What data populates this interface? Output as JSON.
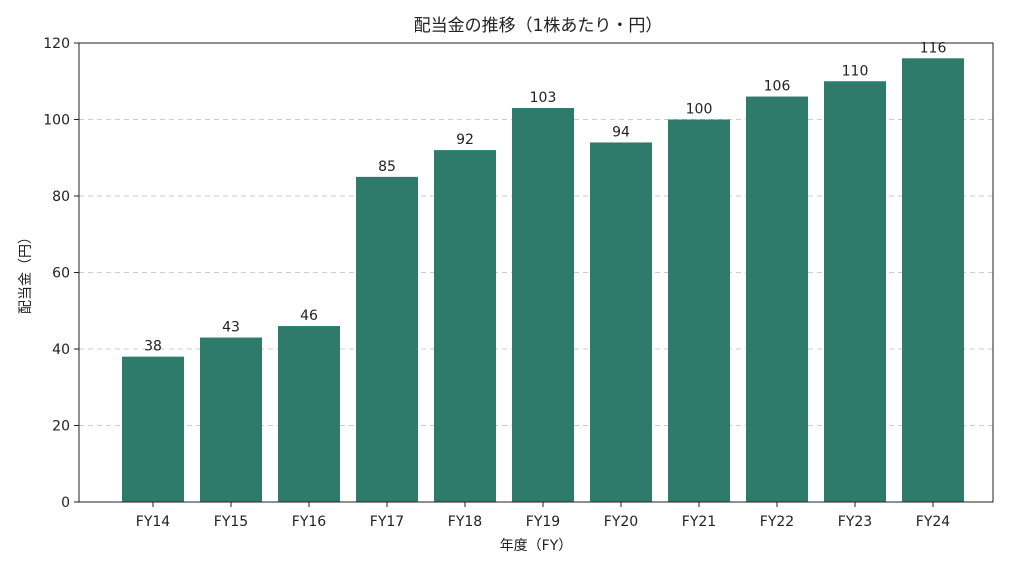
{
  "chart_data": {
    "type": "bar",
    "title": "配当金の推移（1株あたり・円）",
    "xlabel": "年度（FY）",
    "ylabel": "配当金（円）",
    "categories": [
      "FY14",
      "FY15",
      "FY16",
      "FY17",
      "FY18",
      "FY19",
      "FY20",
      "FY21",
      "FY22",
      "FY23",
      "FY24"
    ],
    "values": [
      38,
      43,
      46,
      85,
      92,
      103,
      94,
      100,
      106,
      110,
      116
    ],
    "ylim": [
      0,
      120
    ],
    "yticks": [
      0,
      20,
      40,
      60,
      80,
      100,
      120
    ],
    "grid": "y-dashed",
    "bar_color": "#2e7b6b"
  }
}
